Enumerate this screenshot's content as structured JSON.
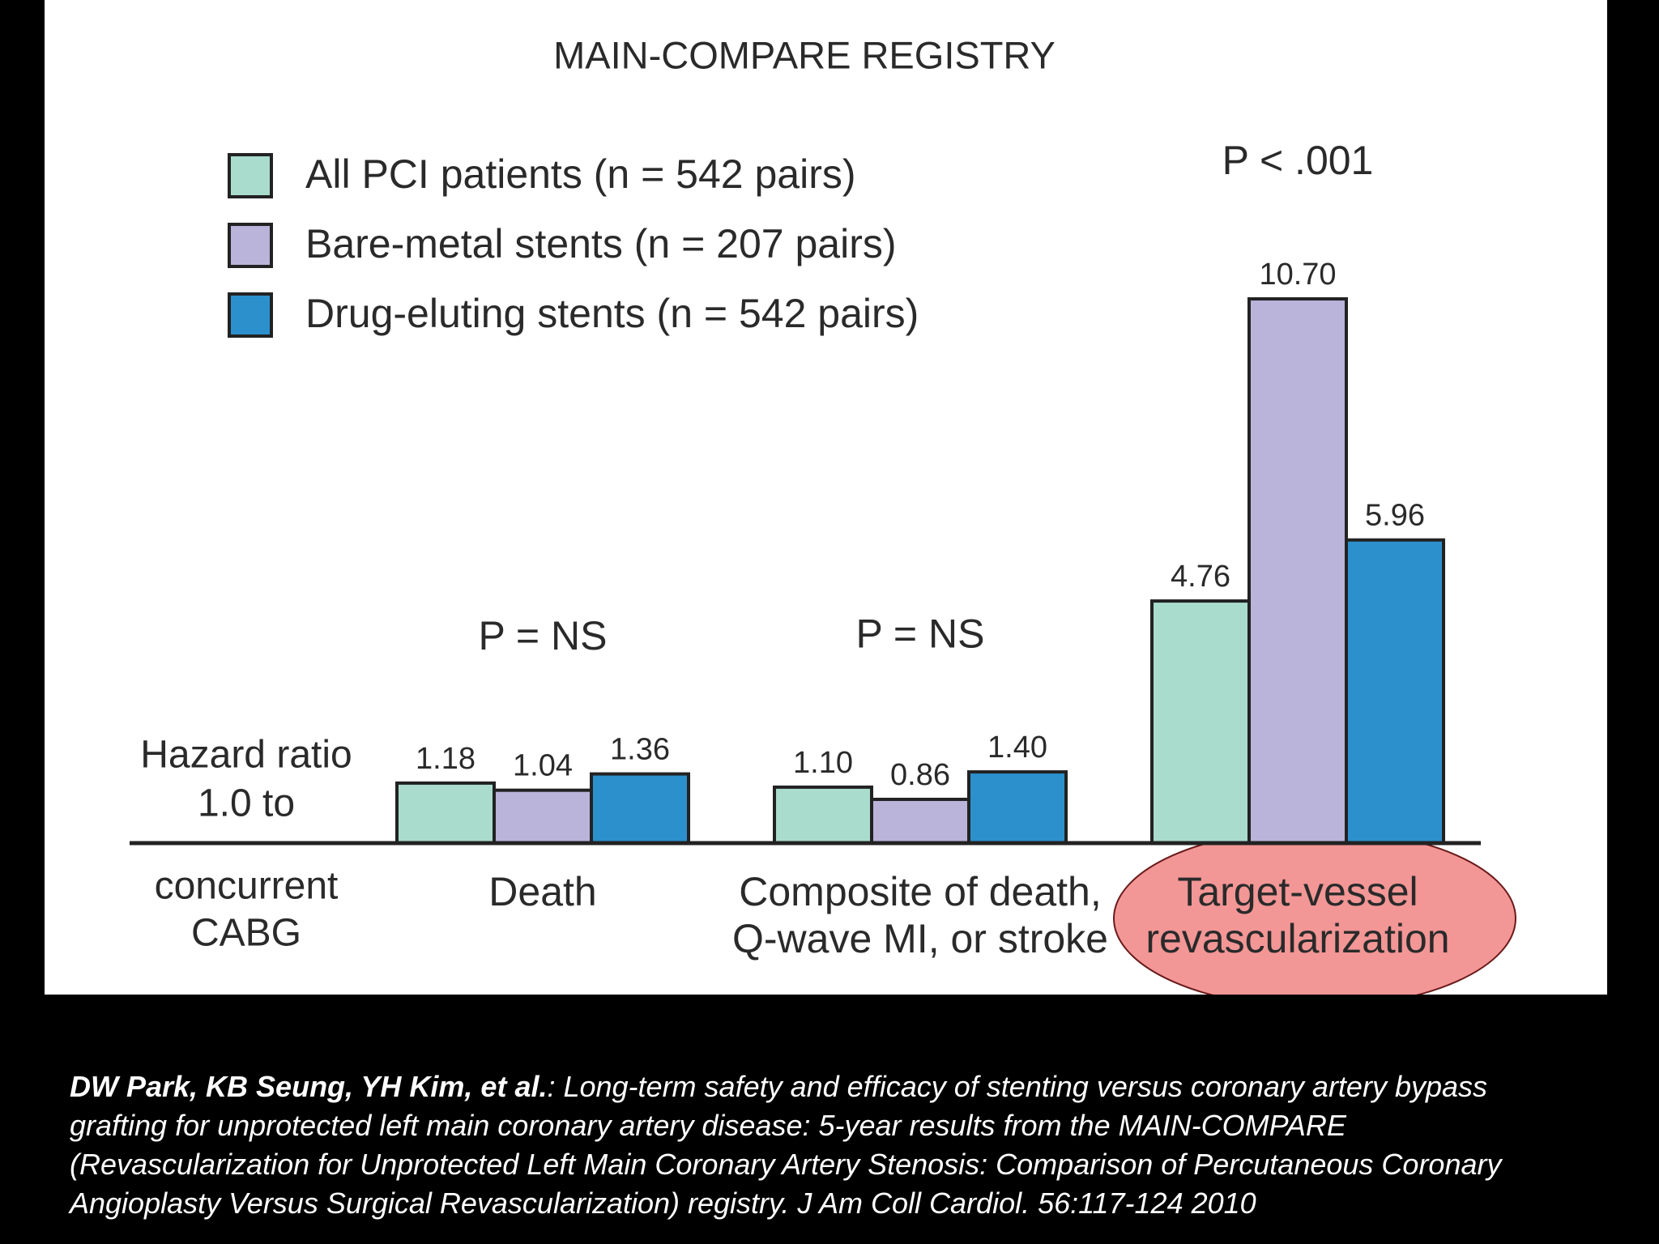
{
  "chart_data": {
    "type": "bar",
    "title": "MAIN-COMPARE REGISTRY",
    "categories": [
      [
        "Death"
      ],
      [
        "Composite of death,",
        "Q-wave MI, or stroke"
      ],
      [
        "Target-vessel",
        "revascularization"
      ]
    ],
    "series": [
      {
        "name": "All PCI patients (n = 542 pairs)",
        "color": "#a9dccd",
        "values": [
          1.18,
          1.1,
          4.76
        ],
        "value_labels": [
          "1.18",
          "1.10",
          "4.76"
        ]
      },
      {
        "name": "Bare-metal stents (n = 207 pairs)",
        "color": "#bab3da",
        "values": [
          1.04,
          0.86,
          10.7
        ],
        "value_labels": [
          "1.04",
          "0.86",
          "10.70"
        ]
      },
      {
        "name": "Drug-eluting stents (n = 542 pairs)",
        "color": "#2c90cc",
        "values": [
          1.36,
          1.4,
          5.96
        ],
        "value_labels": [
          "1.36",
          "1.40",
          "5.96"
        ]
      }
    ],
    "annotations": [
      "P = NS",
      "P = NS",
      "P < .001"
    ],
    "y_label_above": [
      "Hazard ratio",
      "1.0 to"
    ],
    "y_label_below": [
      "concurrent",
      "CABG"
    ],
    "ylim": [
      0,
      12
    ]
  },
  "citation": {
    "authors": "DW Park, KB Seung, YH Kim, et al.",
    "text": ": Long-term safety and efficacy of stenting versus coronary artery bypass grafting for unprotected left main coronary artery disease: 5-year results from the MAIN-COMPARE (Revascularization for Unprotected Left Main Coronary Artery Stenosis: Comparison of Percutaneous Coronary Angioplasty Versus Surgical Revascularization) registry. J Am Coll Cardiol. 56:117-124 2010"
  }
}
